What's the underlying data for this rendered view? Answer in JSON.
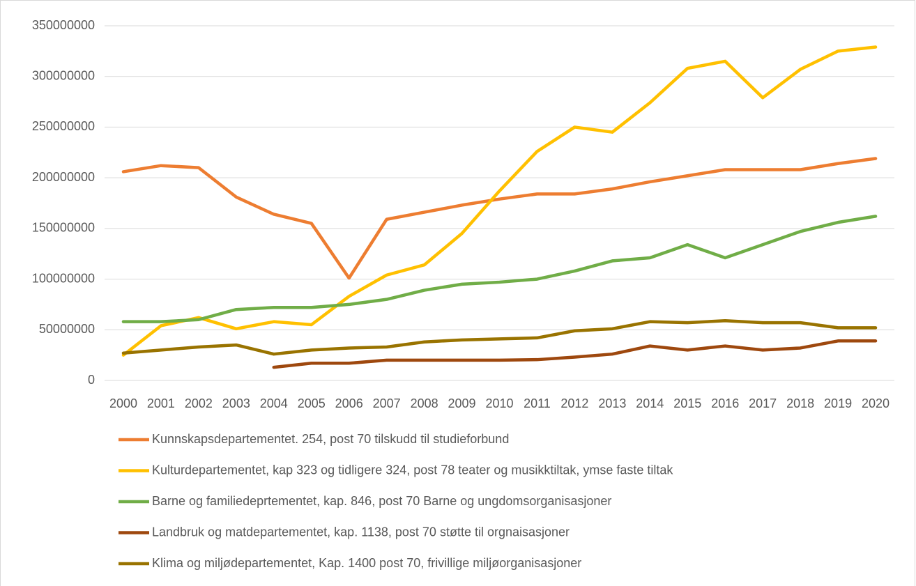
{
  "chart_data": {
    "type": "line",
    "categories": [
      "2000",
      "2001",
      "2002",
      "2003",
      "2004",
      "2005",
      "2006",
      "2007",
      "2008",
      "2009",
      "2010",
      "2011",
      "2012",
      "2013",
      "2014",
      "2015",
      "2016",
      "2017",
      "2018",
      "2019",
      "2020"
    ],
    "ylim": [
      0,
      350000000
    ],
    "yticks": [
      0,
      50000000,
      100000000,
      150000000,
      200000000,
      250000000,
      300000000,
      350000000
    ],
    "grid": true,
    "legend": "bottom",
    "series": [
      {
        "name": "Kunnskapsdepartementet. 254, post 70 tilskudd til studieforbund",
        "color": "#ed7d31",
        "values": [
          206000000,
          212000000,
          210000000,
          181000000,
          164000000,
          155000000,
          101000000,
          159000000,
          166000000,
          173000000,
          179000000,
          184000000,
          184000000,
          189000000,
          196000000,
          202000000,
          208000000,
          208000000,
          208000000,
          214000000,
          219000000
        ]
      },
      {
        "name": "Kulturdepartementet, kap 323 og tidligere 324, post 78 teater og musikktiltak, ymse faste tiltak",
        "color": "#ffc000",
        "values": [
          25000000,
          54000000,
          62000000,
          51000000,
          58000000,
          55000000,
          83000000,
          104000000,
          114000000,
          145000000,
          187000000,
          226000000,
          250000000,
          245000000,
          274000000,
          308000000,
          315000000,
          279000000,
          307000000,
          325000000,
          329000000
        ]
      },
      {
        "name": "Barne og familiedeprtementet, kap. 846, post 70 Barne og ungdomsorganisasjoner",
        "color": "#70ad47",
        "values": [
          58000000,
          58000000,
          60000000,
          70000000,
          72000000,
          72000000,
          75000000,
          80000000,
          89000000,
          95000000,
          97000000,
          100000000,
          108000000,
          118000000,
          121000000,
          134000000,
          121000000,
          134000000,
          147000000,
          156000000,
          162000000
        ]
      },
      {
        "name": "Landbruk og matdepartementet, kap. 1138, post 70 støtte til orgnaisasjoner",
        "color": "#9e480e",
        "values": [
          null,
          null,
          null,
          null,
          13000000,
          17000000,
          17000000,
          20000000,
          20000000,
          20000000,
          20000000,
          20500000,
          23000000,
          26000000,
          34000000,
          30000000,
          34000000,
          30000000,
          32000000,
          39000000,
          39000000
        ]
      },
      {
        "name": "Klima og miljødepartementet, Kap. 1400 post 70, frivillige miljøorganisasjoner",
        "color": "#997300",
        "values": [
          27000000,
          30000000,
          33000000,
          35000000,
          26000000,
          30000000,
          32000000,
          33000000,
          38000000,
          40000000,
          41000000,
          42000000,
          49000000,
          51000000,
          58000000,
          57000000,
          59000000,
          57000000,
          57000000,
          52000000,
          52000000
        ]
      }
    ]
  }
}
